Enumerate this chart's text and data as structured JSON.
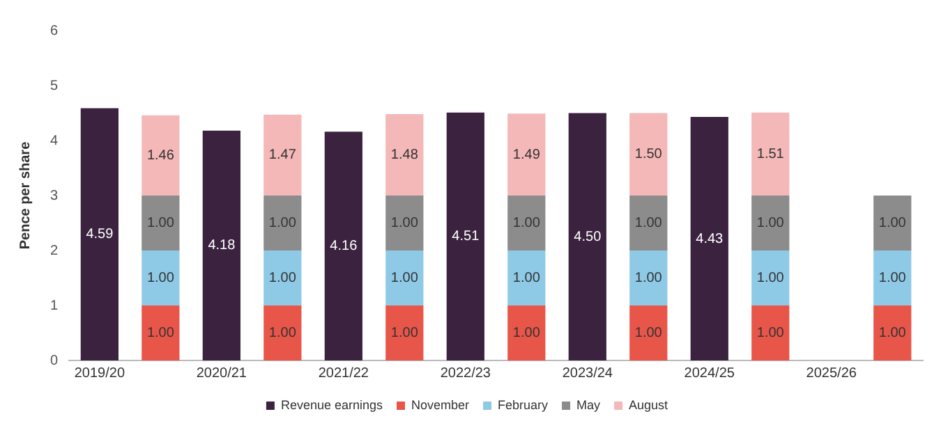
{
  "chart_data": {
    "type": "bar",
    "stacked": true,
    "ylabel": "Pence per share",
    "categories": [
      "2019/20",
      null,
      "2020/21",
      null,
      "2021/22",
      null,
      "2022/23",
      null,
      "2023/24",
      null,
      "2024/25",
      null,
      "2025/26",
      null
    ],
    "ylim": [
      0,
      6
    ],
    "yticks": [
      0,
      1,
      2,
      3,
      4,
      5,
      6
    ],
    "grid": false,
    "legend": "bottom",
    "series": [
      {
        "name": "Revenue earnings",
        "color": "#3b2340",
        "values": [
          4.59,
          null,
          4.18,
          null,
          4.16,
          null,
          4.51,
          null,
          4.5,
          null,
          4.43,
          null,
          null,
          null
        ],
        "value_labels": [
          "4.59",
          null,
          "4.18",
          null,
          "4.16",
          null,
          "4.51",
          null,
          "4.50",
          null,
          "4.43",
          null,
          null,
          null
        ]
      },
      {
        "name": "November",
        "color": "#e8564a",
        "values": [
          null,
          1,
          null,
          1,
          null,
          1,
          null,
          1,
          null,
          1,
          null,
          1,
          null,
          1
        ],
        "value_labels": [
          null,
          "1.00",
          null,
          "1.00",
          null,
          "1.00",
          null,
          "1.00",
          null,
          "1.00",
          null,
          "1.00",
          null,
          "1.00"
        ]
      },
      {
        "name": "February",
        "color": "#8ecae6",
        "values": [
          null,
          1,
          null,
          1,
          null,
          1,
          null,
          1,
          null,
          1,
          null,
          1,
          null,
          1
        ],
        "value_labels": [
          null,
          "1.00",
          null,
          "1.00",
          null,
          "1.00",
          null,
          "1.00",
          null,
          "1.00",
          null,
          "1.00",
          null,
          "1.00"
        ]
      },
      {
        "name": "May",
        "color": "#8c8c8c",
        "values": [
          null,
          1,
          null,
          1,
          null,
          1,
          null,
          1,
          null,
          1,
          null,
          1,
          null,
          1
        ],
        "value_labels": [
          null,
          "1.00",
          null,
          "1.00",
          null,
          "1.00",
          null,
          "1.00",
          null,
          "1.00",
          null,
          "1.00",
          null,
          "1.00"
        ]
      },
      {
        "name": "August",
        "color": "#f4b8b8",
        "values": [
          null,
          1.46,
          null,
          1.47,
          null,
          1.48,
          null,
          1.49,
          null,
          1.5,
          null,
          1.51,
          null,
          null
        ],
        "value_labels": [
          null,
          "1.46",
          null,
          "1.47",
          null,
          "1.48",
          null,
          "1.49",
          null,
          "1.50",
          null,
          "1.51",
          null,
          null
        ]
      }
    ]
  }
}
